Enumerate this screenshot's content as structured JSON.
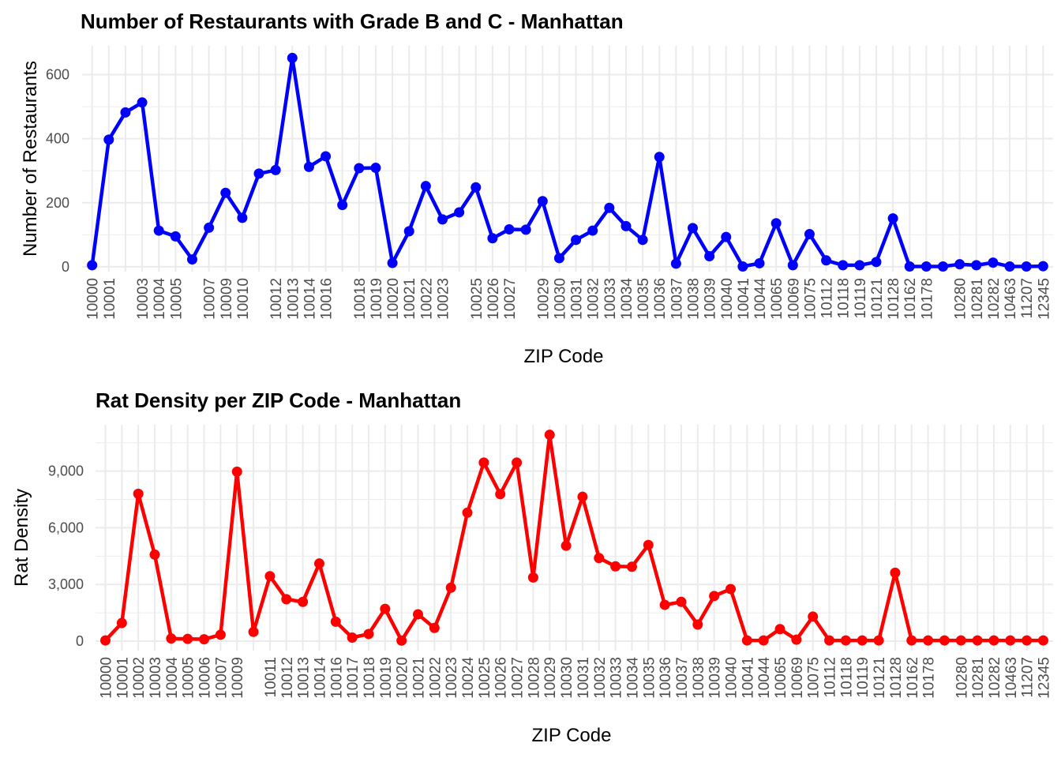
{
  "chart_data": [
    {
      "type": "line",
      "title": "Number of Restaurants with Grade B and C - Manhattan",
      "xlabel": "ZIP Code",
      "ylabel": "Number of Restaurants",
      "ylim": [
        -15,
        690
      ],
      "yticks": [
        0,
        200,
        400,
        600
      ],
      "yticklabels": [
        "0",
        "200",
        "400",
        "600"
      ],
      "grid": true,
      "x": [
        "10000",
        "10001",
        "10002",
        "10003",
        "10004",
        "10005",
        "10006",
        "10007",
        "10009",
        "10010",
        "10011",
        "10012",
        "10013",
        "10014",
        "10016",
        "10017",
        "10018",
        "10019",
        "10020",
        "10021",
        "10022",
        "10023",
        "10024",
        "10025",
        "10026",
        "10027",
        "10028",
        "10029",
        "10030",
        "10031",
        "10032",
        "10033",
        "10034",
        "10035",
        "10036",
        "10037",
        "10038",
        "10039",
        "10040",
        "10041",
        "10044",
        "10065",
        "10069",
        "10075",
        "10112",
        "10118",
        "10119",
        "10121",
        "10128",
        "10162",
        "10178",
        "10278",
        "10280",
        "10281",
        "10282",
        "10463",
        "11207",
        "12345"
      ],
      "x_tick_labels": [
        "10000",
        "10001",
        "10003",
        "10004",
        "10005",
        "10007",
        "10009",
        "10010",
        "10012",
        "10013",
        "10014",
        "10016",
        "10018",
        "10019",
        "10020",
        "10021",
        "10022",
        "10023",
        "10025",
        "10026",
        "10027",
        "10029",
        "10030",
        "10031",
        "10032",
        "10033",
        "10034",
        "10035",
        "10036",
        "10037",
        "10038",
        "10039",
        "10040",
        "10041",
        "10044",
        "10065",
        "10069",
        "10075",
        "10112",
        "10118",
        "10119",
        "10121",
        "10128",
        "10162",
        "10178",
        "10280",
        "10281",
        "10282",
        "10463",
        "11207",
        "12345"
      ],
      "series": [
        {
          "color": "#0000ff",
          "values": [
            5,
            397,
            482,
            513,
            113,
            95,
            23,
            122,
            231,
            153,
            291,
            302,
            652,
            312,
            345,
            193,
            308,
            309,
            12,
            111,
            252,
            148,
            170,
            248,
            89,
            117,
            116,
            205,
            27,
            84,
            113,
            184,
            127,
            84,
            343,
            10,
            121,
            33,
            93,
            1,
            11,
            136,
            5,
            102,
            20,
            5,
            5,
            15,
            151,
            1,
            1,
            1,
            8,
            5,
            13,
            1,
            1,
            2
          ]
        }
      ]
    },
    {
      "type": "line",
      "title": "Rat Density per ZIP Code - Manhattan",
      "xlabel": "ZIP Code",
      "ylabel": "Rat Density",
      "ylim": [
        -500,
        11450
      ],
      "yticks": [
        0,
        3000,
        6000,
        9000
      ],
      "yticklabels": [
        "0",
        "3,000",
        "6,000",
        "9,000"
      ],
      "grid": true,
      "x": [
        "10000",
        "10001",
        "10002",
        "10003",
        "10004",
        "10005",
        "10006",
        "10007",
        "10009",
        "10010",
        "10011",
        "10012",
        "10013",
        "10014",
        "10016",
        "10017",
        "10018",
        "10019",
        "10020",
        "10021",
        "10022",
        "10023",
        "10024",
        "10025",
        "10026",
        "10027",
        "10028",
        "10029",
        "10030",
        "10031",
        "10032",
        "10033",
        "10034",
        "10035",
        "10036",
        "10037",
        "10038",
        "10039",
        "10040",
        "10041",
        "10044",
        "10065",
        "10069",
        "10075",
        "10112",
        "10118",
        "10119",
        "10121",
        "10128",
        "10162",
        "10178",
        "10278",
        "10280",
        "10281",
        "10282",
        "10463",
        "11207",
        "12345"
      ],
      "x_tick_labels": [
        "10000",
        "10001",
        "10002",
        "10003",
        "10004",
        "10005",
        "10006",
        "10007",
        "10009",
        "10011",
        "10012",
        "10013",
        "10014",
        "10016",
        "10017",
        "10018",
        "10019",
        "10020",
        "10021",
        "10022",
        "10023",
        "10024",
        "10025",
        "10026",
        "10027",
        "10028",
        "10029",
        "10030",
        "10031",
        "10032",
        "10033",
        "10034",
        "10035",
        "10036",
        "10037",
        "10038",
        "10039",
        "10040",
        "10041",
        "10044",
        "10065",
        "10069",
        "10075",
        "10112",
        "10118",
        "10119",
        "10121",
        "10128",
        "10162",
        "10178",
        "10280",
        "10281",
        "10282",
        "10463",
        "11207",
        "12345"
      ],
      "series": [
        {
          "color": "#ff0000",
          "values": [
            40,
            960,
            7800,
            4580,
            140,
            120,
            100,
            340,
            8970,
            490,
            3440,
            2220,
            2080,
            4110,
            1030,
            190,
            380,
            1710,
            30,
            1420,
            700,
            2830,
            6800,
            9450,
            7780,
            9450,
            3370,
            10920,
            5050,
            7640,
            4400,
            3960,
            3940,
            5090,
            1920,
            2080,
            880,
            2390,
            2760,
            40,
            40,
            640,
            80,
            1300,
            40,
            40,
            40,
            40,
            3620,
            40,
            40,
            40,
            40,
            40,
            40,
            40,
            40,
            40
          ]
        }
      ]
    }
  ]
}
